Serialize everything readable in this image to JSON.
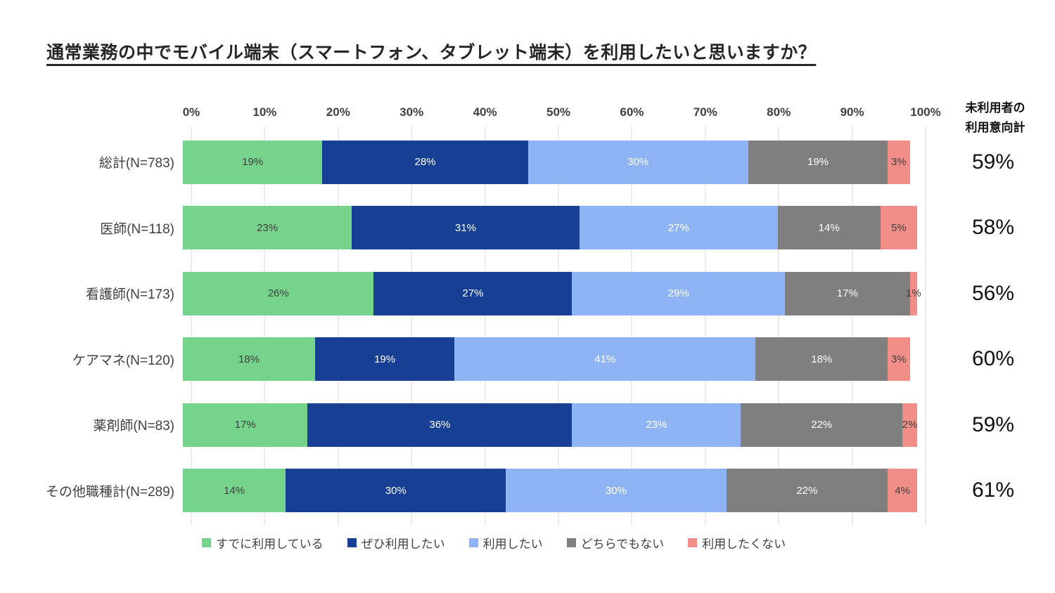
{
  "title": "通常業務の中でモバイル端末（スマートフォン、タブレット端末）を利用したいと思いますか？",
  "right_header": {
    "line1": "未利用者の",
    "line2": "利用意向計"
  },
  "chart_data": {
    "type": "bar",
    "stacked": true,
    "orientation": "horizontal",
    "title": "通常業務の中でモバイル端末（スマートフォン、タブレット端末）を利用したいと思いますか？",
    "x_axis": {
      "ticks": [
        "0%",
        "10%",
        "20%",
        "30%",
        "40%",
        "50%",
        "60%",
        "70%",
        "80%",
        "90%",
        "100%"
      ],
      "min": 0,
      "max": 100,
      "grid": true,
      "gridline_color": "#d9d9d9"
    },
    "categories": [
      "総計(N=783)",
      "医師(N=118)",
      "看護師(N=173)",
      "ケアマネ(N=120)",
      "薬剤師(N=83)",
      "その他職種計(N=289)"
    ],
    "series": [
      {
        "name": "すでに利用している",
        "color": "#76d38b",
        "label_color": "#404040",
        "values": [
          19,
          23,
          26,
          18,
          17,
          14
        ]
      },
      {
        "name": "ぜひ利用したい",
        "color": "#173f94",
        "label_color": "#ffffff",
        "values": [
          28,
          31,
          27,
          19,
          36,
          30
        ]
      },
      {
        "name": "利用したい",
        "color": "#8fb4f5",
        "label_color": "#ffffff",
        "values": [
          30,
          27,
          29,
          41,
          23,
          30
        ]
      },
      {
        "name": "どちらでもない",
        "color": "#7f7f7f",
        "label_color": "#ffffff",
        "values": [
          19,
          14,
          17,
          18,
          22,
          22
        ]
      },
      {
        "name": "利用したくない",
        "color": "#f28e88",
        "label_color": "#404040",
        "values": [
          3,
          5,
          1,
          3,
          2,
          4
        ]
      }
    ],
    "right_values_title": "未利用者の利用意向計",
    "right_values": [
      "59%",
      "58%",
      "56%",
      "60%",
      "59%",
      "61%"
    ],
    "legend_position": "bottom"
  }
}
